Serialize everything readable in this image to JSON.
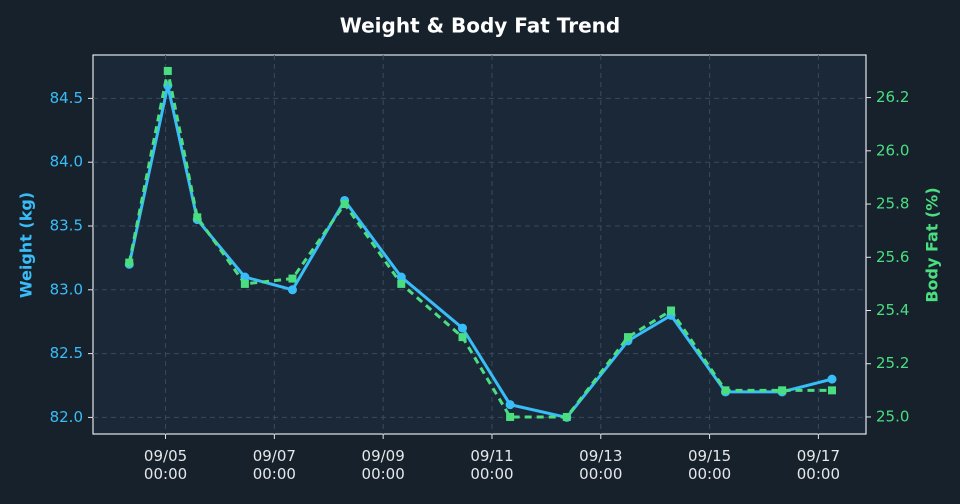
{
  "chart_data": {
    "type": "line",
    "title": "Weight & Body Fat Trend",
    "ylabel": "Weight (kg)",
    "y2label": "Body Fat (%)",
    "x": [
      "09/04 08:00",
      "09/05 01:00",
      "09/05 14:00",
      "09/06 11:00",
      "09/07 08:00",
      "09/08 07:00",
      "09/09 08:00",
      "09/10 11:00",
      "09/11 08:00",
      "09/12 09:00",
      "09/13 12:00",
      "09/14 07:00",
      "09/15 07:00",
      "09/16 08:00",
      "09/17 06:00"
    ],
    "series": [
      {
        "name": "Weight (kg)",
        "color": "#38bdf8",
        "marker": "circle",
        "dashed": false,
        "values": [
          83.2,
          84.6,
          83.55,
          83.1,
          83.0,
          83.7,
          83.1,
          82.7,
          82.1,
          82.0,
          82.6,
          82.8,
          82.2,
          82.2,
          82.3
        ]
      },
      {
        "name": "Body Fat (%)",
        "color": "#4ade80",
        "marker": "square",
        "dashed": true,
        "axis": "y2",
        "values": [
          25.58,
          26.3,
          25.75,
          25.5,
          25.52,
          25.8,
          25.5,
          25.3,
          25.0,
          25.0,
          25.3,
          25.4,
          25.1,
          25.1,
          25.1
        ]
      }
    ],
    "xlim": [
      "09/03 16:00",
      "09/17 21:00"
    ],
    "xticks": [
      "09/05 00:00",
      "09/07 00:00",
      "09/09 00:00",
      "09/11 00:00",
      "09/13 00:00",
      "09/15 00:00",
      "09/17 00:00"
    ],
    "ylim": [
      81.87,
      84.84
    ],
    "yticks": [
      {
        "value": 82,
        "label": "82.0"
      },
      82.5,
      {
        "value": 83,
        "label": "83.0"
      },
      83.5,
      {
        "value": 84,
        "label": "84.0"
      },
      84.5
    ],
    "y2lim": [
      24.936,
      26.36
    ],
    "y2ticks": [
      {
        "value": 25,
        "label": "25.0"
      },
      25.2,
      25.4,
      25.6,
      25.8,
      {
        "value": 26,
        "label": "26.0"
      },
      26.2
    ],
    "grid": true
  }
}
